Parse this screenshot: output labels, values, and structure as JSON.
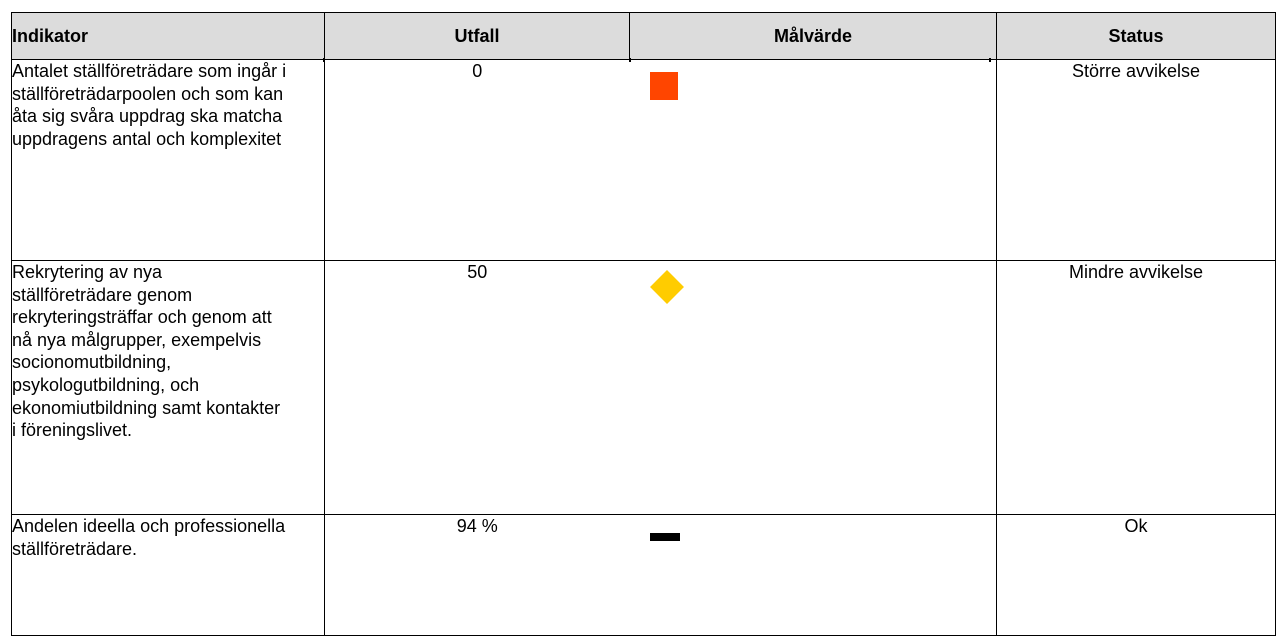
{
  "table": {
    "headers": {
      "indikator": "Indikator",
      "utfall": "Utfall",
      "malvarde": "Målvärde",
      "status": "Status"
    },
    "rows": [
      {
        "indikator": "Antalet ställföreträdare som ingår i ställföreträdarpoolen och som kan åta sig svåra uppdrag ska matcha uppdragens antal och komplexitet",
        "utfall": "0",
        "symbol": "red-square-icon",
        "symbol_color": "#ff4500",
        "status": "Större avvikelse"
      },
      {
        "indikator": "Rekrytering av nya ställföreträdare genom rekryteringsträffar och genom att nå nya målgrupper, exempelvis socionomutbildning, psykologutbildning, och ekonomiutbildning samt kontakter i föreningslivet.",
        "utfall": "50",
        "symbol": "yellow-diamond-icon",
        "symbol_color": "#ffcc00",
        "status": "Mindre avvikelse"
      },
      {
        "indikator": "Andelen ideella och professionella ställföreträdare.",
        "utfall": "94 %",
        "symbol": "black-dash-icon",
        "symbol_color": "#000000",
        "status": "Ok"
      }
    ]
  }
}
